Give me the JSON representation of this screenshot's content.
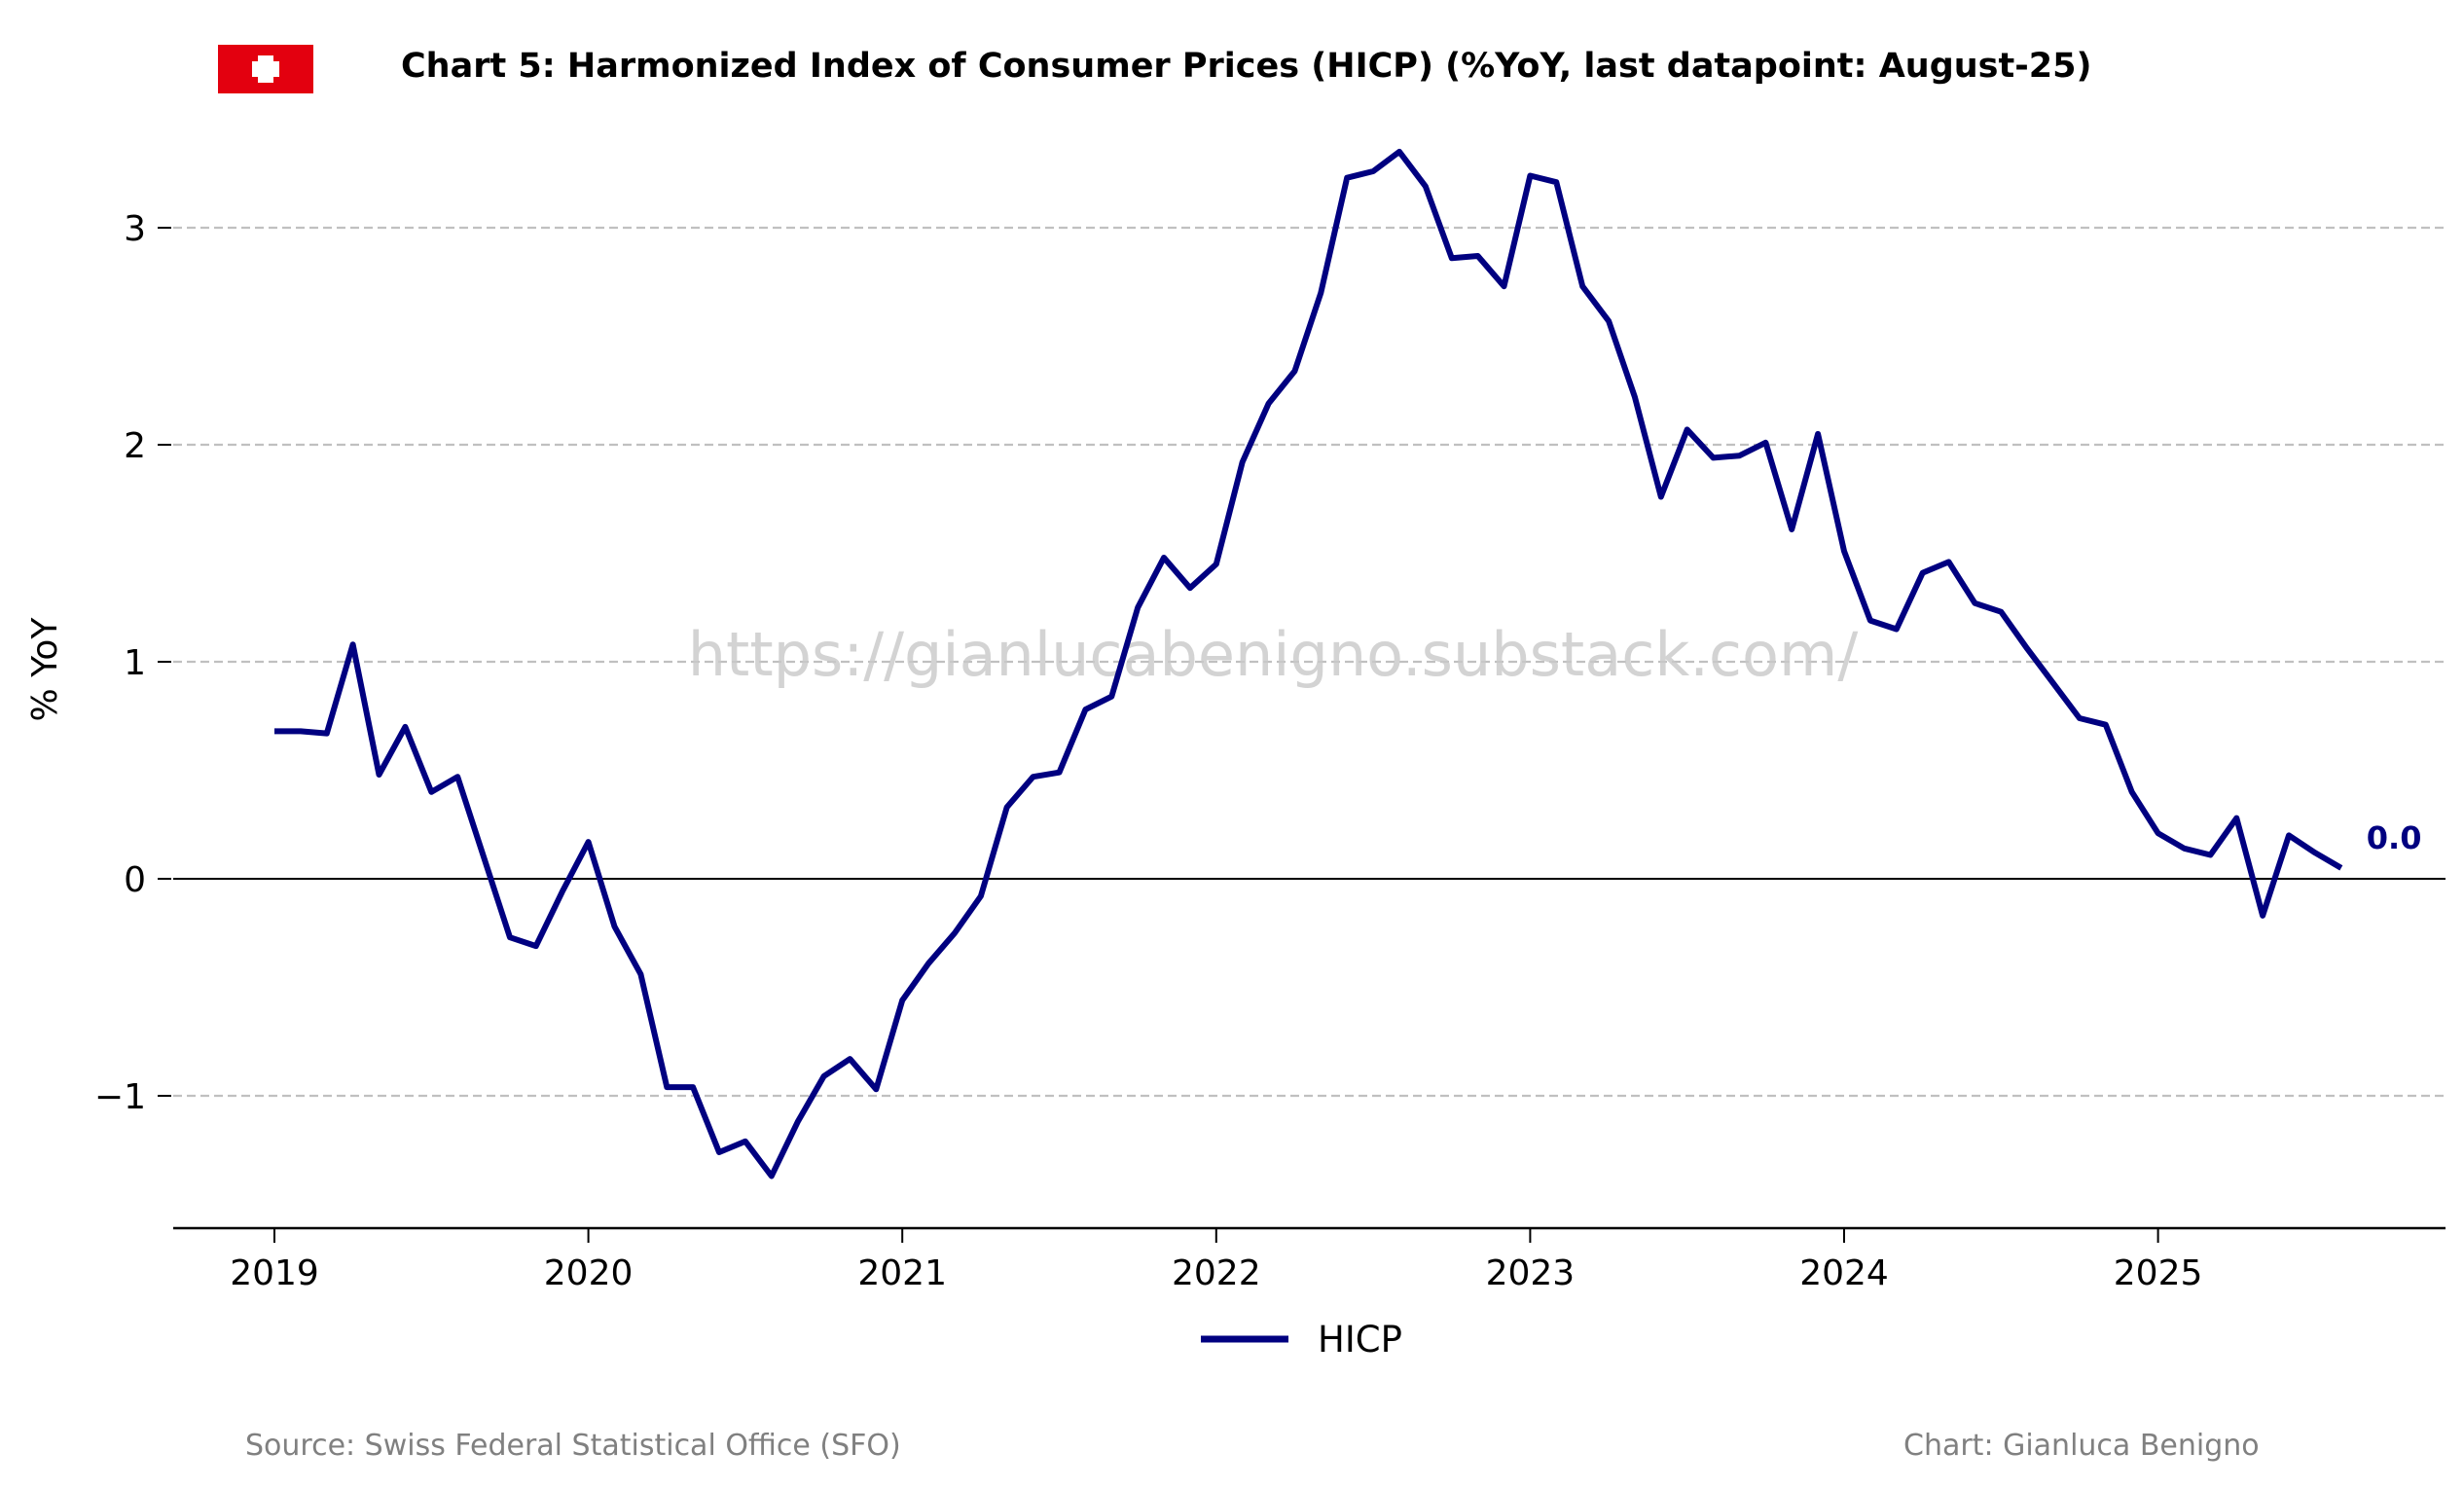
{
  "chart_data": {
    "type": "line",
    "title": "Chart 5: Harmonized Index of Consumer Prices (HICP) (%YoY, last datapoint: August-25)",
    "xlabel": "",
    "ylabel": "% YoY",
    "ylim": [
      -1.6,
      3.4
    ],
    "xlim": [
      2018.67,
      2025.9
    ],
    "yticks": [
      -1,
      0,
      1,
      2,
      3
    ],
    "ytick_labels": [
      "−1",
      "0",
      "1",
      "2",
      "3"
    ],
    "xticks": [
      2019,
      2020,
      2021,
      2022,
      2023,
      2024,
      2025
    ],
    "xtick_labels": [
      "2019",
      "2020",
      "2021",
      "2022",
      "2023",
      "2024",
      "2025"
    ],
    "grid": "horizontal-dashed",
    "legend_position": "bottom-center",
    "series": [
      {
        "name": "HICP",
        "color": "#000080",
        "start": "2019-01",
        "frequency": "monthly",
        "values": [
          0.68,
          0.68,
          0.67,
          1.08,
          0.48,
          0.7,
          0.4,
          0.47,
          0.1,
          -0.27,
          -0.31,
          -0.06,
          0.17,
          -0.22,
          -0.44,
          -0.96,
          -0.96,
          -1.26,
          -1.21,
          -1.37,
          -1.12,
          -0.91,
          -0.83,
          -0.97,
          -0.56,
          -0.39,
          -0.25,
          -0.08,
          0.33,
          0.47,
          0.49,
          0.78,
          0.84,
          1.25,
          1.48,
          1.34,
          1.45,
          1.92,
          2.19,
          2.34,
          2.7,
          3.23,
          3.26,
          3.35,
          3.19,
          2.86,
          2.87,
          2.73,
          3.24,
          3.21,
          2.73,
          2.57,
          2.22,
          1.76,
          2.07,
          1.94,
          1.95,
          2.01,
          1.61,
          2.05,
          1.51,
          1.19,
          1.15,
          1.41,
          1.46,
          1.27,
          1.23,
          1.06,
          0.9,
          0.74,
          0.71,
          0.4,
          0.21,
          0.14,
          0.11,
          0.28,
          -0.17,
          0.2,
          0.12,
          0.05
        ]
      }
    ],
    "last_value_label": "0.0",
    "annotations": [
      "https://gianlucabenigno.substack.com/"
    ],
    "source": "Source: Swiss Federal Statistical Office (SFO)",
    "credit": "Chart: Gianluca Benigno",
    "flag": "switzerland-flag"
  }
}
